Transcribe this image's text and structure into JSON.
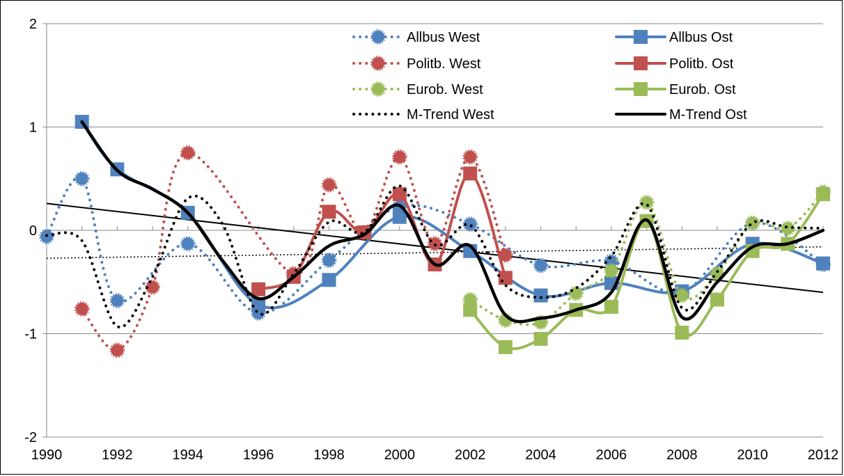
{
  "chart_data": {
    "type": "line",
    "title": "",
    "xlabel": "",
    "ylabel": "",
    "xlim": [
      1990,
      2012
    ],
    "ylim": [
      -2,
      2
    ],
    "x_ticks": [
      "1990",
      "1992",
      "1994",
      "1996",
      "1998",
      "2000",
      "2002",
      "2004",
      "2006",
      "2008",
      "2010",
      "2012"
    ],
    "y_ticks": [
      "2",
      "1",
      "0",
      "-1",
      "-2"
    ],
    "grid": "horizontal",
    "legend_position": "top-right",
    "series": [
      {
        "name": "Allbus West",
        "color": "#4f81bd",
        "style": "dotted",
        "marker": "circle",
        "points": [
          [
            1990,
            -0.06
          ],
          [
            1991,
            0.5
          ],
          [
            1992,
            -0.68
          ],
          [
            1994,
            -0.13
          ],
          [
            1996,
            -0.8
          ],
          [
            1998,
            -0.29
          ],
          [
            2000,
            0.23
          ],
          [
            2002,
            0.06
          ],
          [
            2004,
            -0.34
          ],
          [
            2006,
            -0.3
          ],
          [
            2008,
            -0.6
          ],
          [
            2010,
            0.07
          ],
          [
            2012,
            -0.33
          ]
        ]
      },
      {
        "name": "Allbus Ost",
        "color": "#4f81bd",
        "style": "solid",
        "marker": "square",
        "points": [
          [
            1991,
            1.05
          ],
          [
            1992,
            0.59
          ],
          [
            1994,
            0.17
          ],
          [
            1996,
            -0.72
          ],
          [
            1998,
            -0.48
          ],
          [
            2000,
            0.13
          ],
          [
            2002,
            -0.2
          ],
          [
            2004,
            -0.63
          ],
          [
            2006,
            -0.51
          ],
          [
            2008,
            -0.59
          ],
          [
            2010,
            -0.13
          ],
          [
            2012,
            -0.32
          ]
        ]
      },
      {
        "name": "Politb. West",
        "color": "#c0504d",
        "style": "dotted",
        "marker": "circle",
        "points": [
          [
            1991,
            -0.76
          ],
          [
            1992,
            -1.16
          ],
          [
            1993,
            -0.55
          ],
          [
            1994,
            0.75
          ],
          [
            1997,
            -0.42
          ],
          [
            1998,
            0.44
          ],
          [
            1999,
            -0.02
          ],
          [
            2000,
            0.71
          ],
          [
            2001,
            -0.13
          ],
          [
            2002,
            0.71
          ],
          [
            2003,
            -0.24
          ]
        ]
      },
      {
        "name": "Politb. Ost",
        "color": "#c0504d",
        "style": "solid",
        "marker": "square",
        "points": [
          [
            1996,
            -0.57
          ],
          [
            1997,
            -0.45
          ],
          [
            1998,
            0.18
          ],
          [
            1999,
            -0.02
          ],
          [
            2000,
            0.35
          ],
          [
            2001,
            -0.33
          ],
          [
            2002,
            0.55
          ],
          [
            2003,
            -0.46
          ]
        ]
      },
      {
        "name": "Eurob. West",
        "color": "#9bbb59",
        "style": "dotted",
        "marker": "circle",
        "points": [
          [
            2002,
            -0.67
          ],
          [
            2003,
            -0.87
          ],
          [
            2004,
            -0.89
          ],
          [
            2005,
            -0.61
          ],
          [
            2006,
            -0.39
          ],
          [
            2007,
            0.27
          ],
          [
            2008,
            -0.63
          ],
          [
            2009,
            -0.42
          ],
          [
            2010,
            0.07
          ],
          [
            2011,
            0.02
          ],
          [
            2012,
            0.37
          ]
        ]
      },
      {
        "name": "Eurob. Ost",
        "color": "#9bbb59",
        "style": "solid",
        "marker": "square",
        "points": [
          [
            2002,
            -0.77
          ],
          [
            2003,
            -1.13
          ],
          [
            2004,
            -1.05
          ],
          [
            2005,
            -0.77
          ],
          [
            2006,
            -0.74
          ],
          [
            2007,
            0.09
          ],
          [
            2008,
            -0.99
          ],
          [
            2009,
            -0.67
          ],
          [
            2010,
            -0.2
          ],
          [
            2011,
            -0.13
          ],
          [
            2012,
            0.35
          ]
        ]
      },
      {
        "name": "M-Trend West",
        "color": "#000000",
        "style": "dotted",
        "marker": "none",
        "points": [
          [
            1990,
            -0.05
          ],
          [
            1991,
            -0.1
          ],
          [
            1992,
            -0.93
          ],
          [
            1993,
            -0.45
          ],
          [
            1994,
            0.31
          ],
          [
            1995,
            0.05
          ],
          [
            1996,
            -0.8
          ],
          [
            1997,
            -0.42
          ],
          [
            1998,
            0.08
          ],
          [
            1999,
            -0.02
          ],
          [
            2000,
            0.43
          ],
          [
            2001,
            -0.14
          ],
          [
            2002,
            0.05
          ],
          [
            2003,
            -0.53
          ],
          [
            2004,
            -0.65
          ],
          [
            2005,
            -0.56
          ],
          [
            2006,
            -0.25
          ],
          [
            2007,
            0.25
          ],
          [
            2008,
            -0.75
          ],
          [
            2009,
            -0.4
          ],
          [
            2010,
            0.07
          ],
          [
            2011,
            0.03
          ],
          [
            2012,
            0.02
          ]
        ]
      },
      {
        "name": "M-Trend Ost",
        "color": "#000000",
        "style": "solid",
        "marker": "none",
        "points": [
          [
            1991,
            1.05
          ],
          [
            1992,
            0.58
          ],
          [
            1993,
            0.4
          ],
          [
            1994,
            0.17
          ],
          [
            1995,
            -0.3
          ],
          [
            1996,
            -0.66
          ],
          [
            1997,
            -0.45
          ],
          [
            1998,
            -0.15
          ],
          [
            1999,
            -0.04
          ],
          [
            2000,
            0.24
          ],
          [
            2001,
            -0.33
          ],
          [
            2002,
            -0.15
          ],
          [
            2003,
            -0.82
          ],
          [
            2004,
            -0.85
          ],
          [
            2005,
            -0.77
          ],
          [
            2006,
            -0.6
          ],
          [
            2007,
            0.1
          ],
          [
            2008,
            -0.84
          ],
          [
            2009,
            -0.5
          ],
          [
            2010,
            -0.16
          ],
          [
            2011,
            -0.13
          ],
          [
            2012,
            0.0
          ]
        ]
      }
    ],
    "trendlines": [
      {
        "of": "M-Trend Ost",
        "style": "solid",
        "color": "#000000",
        "from": [
          1990,
          0.26
        ],
        "to": [
          2012,
          -0.6
        ]
      },
      {
        "of": "M-Trend West",
        "style": "dotted",
        "color": "#000000",
        "from": [
          1990,
          -0.27
        ],
        "to": [
          2012,
          -0.16
        ]
      }
    ]
  }
}
